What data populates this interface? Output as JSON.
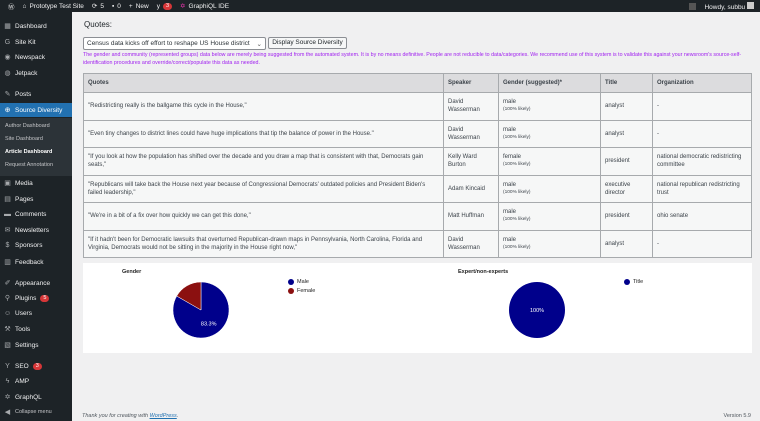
{
  "adminbar": {
    "site": "Prototype Test Site",
    "updates": "5",
    "comments": "0",
    "new": "New",
    "seo_badge": "3",
    "graphiql": "GraphiQL IDE",
    "howdy": "Howdy, subbu"
  },
  "sidebar": {
    "items": [
      {
        "label": "Dashboard",
        "icon": "dashboard-icon"
      },
      {
        "label": "Site Kit",
        "icon": "google-icon"
      },
      {
        "label": "Newspack",
        "icon": "newspack-icon"
      },
      {
        "label": "Jetpack",
        "icon": "jetpack-icon"
      },
      {
        "label": "Posts",
        "icon": "pin-icon"
      },
      {
        "label": "Source Diversity",
        "icon": "globe-icon"
      },
      {
        "label": "Media",
        "icon": "media-icon"
      },
      {
        "label": "Pages",
        "icon": "pages-icon"
      },
      {
        "label": "Comments",
        "icon": "comment-icon"
      },
      {
        "label": "Newsletters",
        "icon": "mail-icon"
      },
      {
        "label": "Sponsors",
        "icon": "dollar-icon"
      },
      {
        "label": "Feedback",
        "icon": "feedback-icon"
      },
      {
        "label": "Appearance",
        "icon": "brush-icon"
      },
      {
        "label": "Plugins",
        "icon": "plugin-icon",
        "badge": "5"
      },
      {
        "label": "Users",
        "icon": "users-icon"
      },
      {
        "label": "Tools",
        "icon": "wrench-icon"
      },
      {
        "label": "Settings",
        "icon": "settings-icon"
      },
      {
        "label": "SEO",
        "icon": "yoast-icon",
        "badge": "3"
      },
      {
        "label": "AMP",
        "icon": "amp-icon"
      },
      {
        "label": "GraphQL",
        "icon": "graphql-icon"
      },
      {
        "label": "Collapse menu",
        "icon": "collapse-icon"
      }
    ],
    "submenu": [
      "Author Dashboard",
      "Site Dashboard",
      "Article Dashboard",
      "Request Annotation"
    ]
  },
  "main": {
    "heading": "Quotes:",
    "select_value": "Census data kicks off effort to reshape US House district",
    "button": "Display Source Diversity",
    "note": "The gender and community (represented groups) data below are merely being suggested from the automated system. It is by no means definitive. People are not reducible to data/categories. We recommend use of this system is to validate this against your newsroom's source-self-identification procedures and override/correct/populate this data as needed.",
    "columns": [
      "Quotes",
      "Speaker",
      "Gender (suggested)*",
      "Title",
      "Organization"
    ],
    "rows": [
      {
        "quote": "\"Redistricting really is the ballgame this cycle in the House,\"",
        "speaker": "David Wasserman",
        "gender": "male",
        "likely": "(100% likely)",
        "title": "analyst",
        "org": "-"
      },
      {
        "quote": "\"Even tiny changes to district lines could have huge implications that tip the balance of power in the House.\"",
        "speaker": "David Wasserman",
        "gender": "male",
        "likely": "(100% likely)",
        "title": "analyst",
        "org": "-"
      },
      {
        "quote": "\"If you look at how the population has shifted over the decade and you draw a map that is consistent with that, Democrats gain seats,\"",
        "speaker": "Kelly Ward Burton",
        "gender": "female",
        "likely": "(100% likely)",
        "title": "president",
        "org": "national democratic redistricting committee"
      },
      {
        "quote": "\"Republicans will take back the House next year because of Congressional Democrats' outdated policies and President Biden's failed leadership,\"",
        "speaker": "Adam Kincaid",
        "gender": "male",
        "likely": "(100% likely)",
        "title": "executive director",
        "org": "national republican redistricting trust"
      },
      {
        "quote": "\"We're in a bit of a fix over how quickly we can get this done,\"",
        "speaker": "Matt Huffman",
        "gender": "male",
        "likely": "(100% likely)",
        "title": "president",
        "org": "ohio senate"
      },
      {
        "quote": "\"If it hadn't been for Democratic lawsuits that overturned Republican-drawn maps in Pennsylvania, North Carolina, Florida and Virginia, Democrats would not be sitting in the majority in the House right now,\"",
        "speaker": "David Wasserman",
        "gender": "male",
        "likely": "(100% likely)",
        "title": "analyst",
        "org": "-"
      }
    ]
  },
  "chart_data": [
    {
      "type": "pie",
      "title": "Gender",
      "categories": [
        "Male",
        "Female"
      ],
      "values": [
        83.3,
        16.7
      ],
      "colors": [
        "#00008b",
        "#8b1010"
      ],
      "data_labels": [
        "83.3%",
        ""
      ],
      "legend": "right"
    },
    {
      "type": "pie",
      "title": "Expert/non-experts",
      "categories": [
        "Title"
      ],
      "values": [
        100
      ],
      "colors": [
        "#00008b"
      ],
      "data_labels": [
        "100%"
      ],
      "legend": "right"
    }
  ],
  "footer": {
    "thanks": "Thank you for creating with ",
    "link": "WordPress",
    "end": ".",
    "version": "Version 5.9"
  }
}
